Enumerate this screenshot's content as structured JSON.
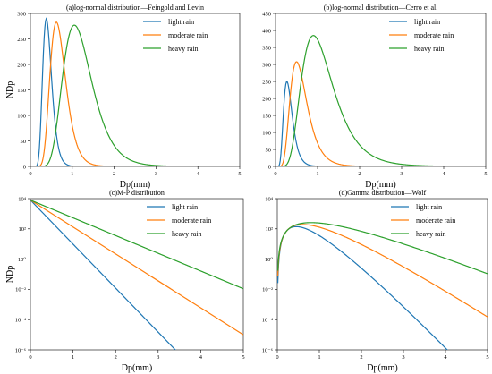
{
  "chart_data": [
    {
      "type": "line",
      "title": "(a)log-normal distribution—Feingold and Levin",
      "xlabel": "Dp(mm)",
      "ylabel": "NDp",
      "xlim": [
        0,
        5
      ],
      "ylim": [
        0,
        300
      ],
      "yscale": "linear",
      "legend": "top-right",
      "x_ticks": [
        0,
        1,
        2,
        3,
        4,
        5
      ],
      "y_ticks": [
        0,
        50,
        100,
        150,
        200,
        250,
        300
      ],
      "x_tick_labels": [
        "0",
        "1",
        "2",
        "3",
        "4",
        "5"
      ],
      "y_tick_labels": [
        "0",
        "50",
        "100",
        "150",
        "200",
        "250",
        "300"
      ],
      "series": [
        {
          "name": "light rain",
          "color": "#1f77b4",
          "model": "lognormal",
          "peak_x": 0.38,
          "peak_y": 290,
          "sigma": 0.28
        },
        {
          "name": "moderate rain",
          "color": "#ff7f0e",
          "model": "lognormal",
          "peak_x": 0.62,
          "peak_y": 283,
          "sigma": 0.3
        },
        {
          "name": "heavy rain",
          "color": "#2ca02c",
          "model": "lognormal",
          "peak_x": 1.05,
          "peak_y": 277,
          "sigma": 0.33
        }
      ]
    },
    {
      "type": "line",
      "title": "(b)log-normal distribution—Cerro et al.",
      "xlabel": "Dp(mm)",
      "ylabel": "",
      "xlim": [
        0,
        5
      ],
      "ylim": [
        0,
        450
      ],
      "yscale": "linear",
      "legend": "top-right",
      "x_ticks": [
        0,
        1,
        2,
        3,
        4,
        5
      ],
      "y_ticks": [
        0,
        50,
        100,
        150,
        200,
        250,
        300,
        350,
        400,
        450
      ],
      "x_tick_labels": [
        "0",
        "1",
        "2",
        "3",
        "4",
        "5"
      ],
      "y_tick_labels": [
        "0",
        "50",
        "100",
        "150",
        "200",
        "250",
        "300",
        "350",
        "400",
        "450"
      ],
      "series": [
        {
          "name": "light rain",
          "color": "#1f77b4",
          "model": "lognormal",
          "peak_x": 0.27,
          "peak_y": 250,
          "sigma": 0.38
        },
        {
          "name": "moderate rain",
          "color": "#ff7f0e",
          "model": "lognormal",
          "peak_x": 0.5,
          "peak_y": 308,
          "sigma": 0.4
        },
        {
          "name": "heavy rain",
          "color": "#2ca02c",
          "model": "lognormal",
          "peak_x": 0.9,
          "peak_y": 385,
          "sigma": 0.42
        }
      ]
    },
    {
      "type": "line",
      "title": "(c)M-P distribution",
      "xlabel": "Dp(mm)",
      "ylabel": "NDp",
      "xlim": [
        0,
        5
      ],
      "ylim": [
        -6,
        4
      ],
      "yscale": "log",
      "legend": "top-right",
      "x_ticks": [
        0,
        1,
        2,
        3,
        4,
        5
      ],
      "y_ticks": [
        4,
        2,
        0,
        -2,
        -4,
        -6
      ],
      "x_tick_labels": [
        "0",
        "1",
        "2",
        "3",
        "4",
        "5"
      ],
      "y_tick_labels": [
        "10⁴",
        "10²",
        "10⁰",
        "10⁻²",
        "10⁻⁴",
        "10⁻⁶"
      ],
      "series": [
        {
          "name": "light rain",
          "color": "#1f77b4",
          "model": "exp",
          "n0": 8000,
          "lambda": 6.7
        },
        {
          "name": "moderate rain",
          "color": "#ff7f0e",
          "model": "exp",
          "n0": 8000,
          "lambda": 4.1
        },
        {
          "name": "heavy rain",
          "color": "#2ca02c",
          "model": "exp",
          "n0": 8000,
          "lambda": 2.7
        }
      ]
    },
    {
      "type": "line",
      "title": "(d)Gamma distribution—Wolf",
      "xlabel": "Dp(mm)",
      "ylabel": "",
      "xlim": [
        0,
        5
      ],
      "ylim": [
        -6,
        4
      ],
      "yscale": "log",
      "legend": "top-right",
      "x_ticks": [
        0,
        1,
        2,
        3,
        4,
        5
      ],
      "y_ticks": [
        4,
        2,
        0,
        -2,
        -4,
        -6
      ],
      "x_tick_labels": [
        "0",
        "1",
        "2",
        "3",
        "4",
        "5"
      ],
      "y_tick_labels": [
        "10⁴",
        "10²",
        "10⁰",
        "10⁻²",
        "10⁻⁴",
        "10⁻⁶"
      ],
      "series": [
        {
          "name": "light rain",
          "color": "#1f77b4",
          "model": "gamma",
          "peak_x": 0.45,
          "peak_y": 140,
          "slope": 7.2
        },
        {
          "name": "moderate rain",
          "color": "#ff7f0e",
          "model": "gamma",
          "peak_x": 0.6,
          "peak_y": 195,
          "slope": 4.5
        },
        {
          "name": "heavy rain",
          "color": "#2ca02c",
          "model": "gamma",
          "peak_x": 0.8,
          "peak_y": 260,
          "slope": 2.85
        }
      ]
    }
  ]
}
